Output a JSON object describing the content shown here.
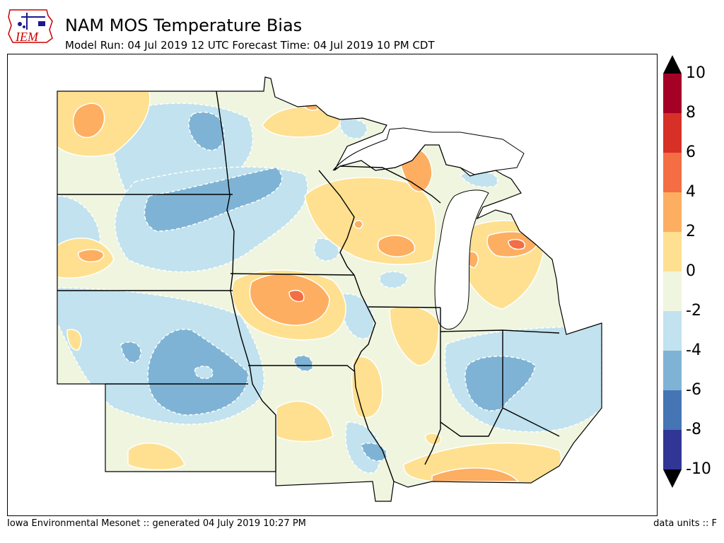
{
  "header": {
    "logo_text": "IEM",
    "title": "NAM MOS Temperature Bias",
    "subtitle": "Model Run: 04 Jul 2019 12 UTC Forecast Time: 04 Jul 2019 10 PM CDT"
  },
  "colorbar": {
    "ticks": [
      "10",
      "8",
      "6",
      "4",
      "2",
      "0",
      "-2",
      "-4",
      "-6",
      "-8",
      "-10"
    ],
    "colors": [
      "#a50026",
      "#d73027",
      "#f46d43",
      "#fdae61",
      "#fee090",
      "#eff5df",
      "#c1e2ee",
      "#7fb3d5",
      "#4575b4",
      "#313695"
    ],
    "over_color": "#000000",
    "under_color": "#000000"
  },
  "footer": {
    "left": "Iowa Environmental Mesonet :: generated 04 July 2019 10:27 PM",
    "right": "data units :: F"
  }
}
